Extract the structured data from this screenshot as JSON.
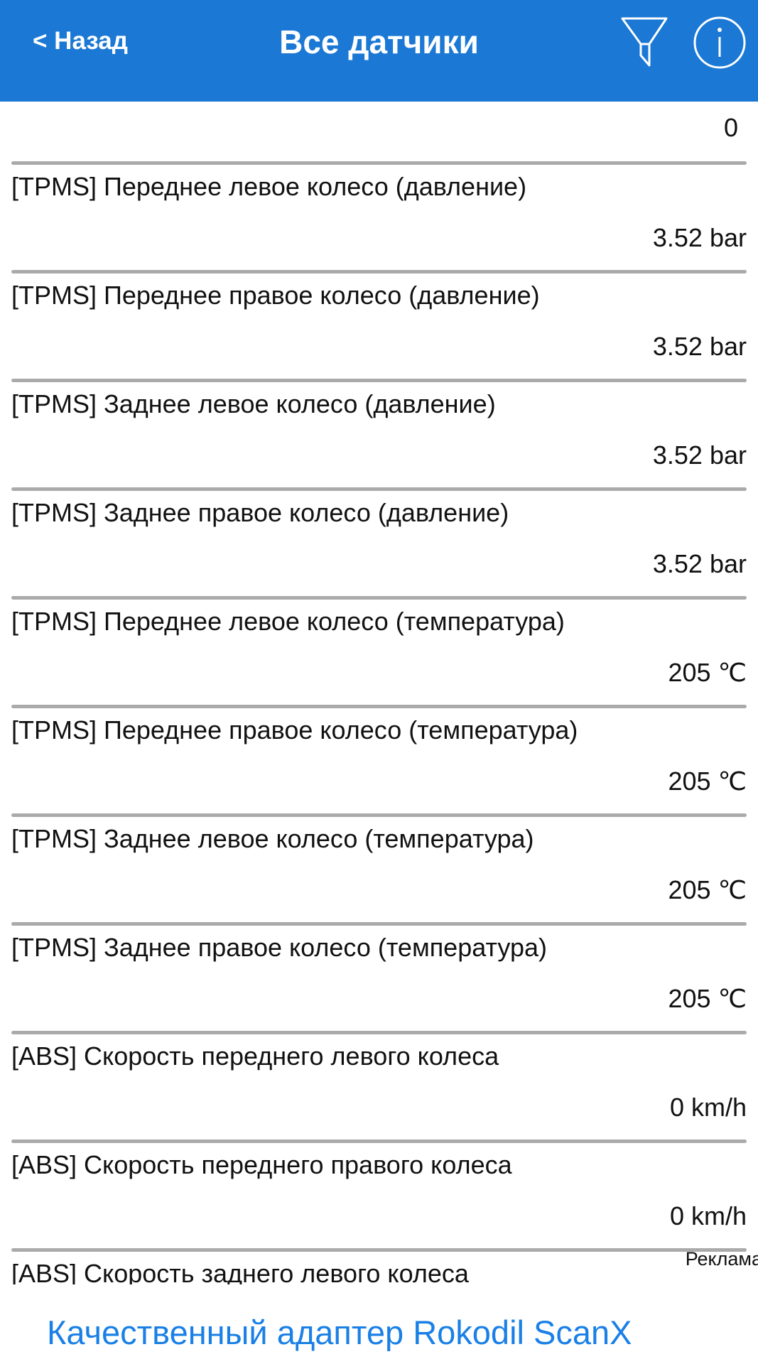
{
  "header": {
    "back_label": "< Назад",
    "title": "Все датчики",
    "icons": [
      "filter-icon",
      "info-icon"
    ]
  },
  "first_value": "0",
  "sensors": [
    {
      "label": "[TPMS] Переднее левое колесо (давление)",
      "value": "3.52 bar"
    },
    {
      "label": "[TPMS] Переднее правое колесо (давление)",
      "value": "3.52 bar"
    },
    {
      "label": "[TPMS] Заднее левое колесо (давление)",
      "value": "3.52 bar"
    },
    {
      "label": "[TPMS] Заднее правое колесо (давление)",
      "value": "3.52 bar"
    },
    {
      "label": "[TPMS] Переднее левое колесо (температура)",
      "value": "205 ℃"
    },
    {
      "label": "[TPMS] Переднее правое колесо (температура)",
      "value": "205 ℃"
    },
    {
      "label": "[TPMS] Заднее левое колесо (температура)",
      "value": "205 ℃"
    },
    {
      "label": "[TPMS] Заднее правое колесо (температура)",
      "value": "205 ℃"
    },
    {
      "label": "[ABS] Скорость переднего левого колеса",
      "value": "0 km/h"
    },
    {
      "label": "[ABS] Скорость переднего правого колеса",
      "value": "0 km/h"
    },
    {
      "label": "[ABS] Скорость заднего левого колеса",
      "value": ""
    }
  ],
  "ad": {
    "label": "Реклама",
    "text": "Качественный адаптер Rokodil ScanX"
  },
  "colors": {
    "header": "#1b78d4",
    "ad_link": "#1a80e6",
    "separator": "#aaaaaa"
  }
}
